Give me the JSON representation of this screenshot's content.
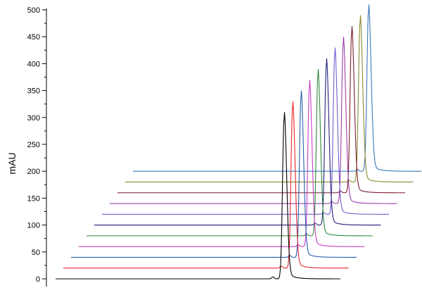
{
  "chart_data": {
    "type": "line",
    "title": "",
    "xlabel": "",
    "ylabel": "mAU",
    "ylim": [
      0,
      500
    ],
    "yticks": [
      0,
      50,
      100,
      150,
      200,
      250,
      300,
      350,
      400,
      450,
      500
    ],
    "ytick_labels": [
      "0",
      "50",
      "100",
      "150",
      "200",
      "250",
      "300",
      "350",
      "400",
      "450",
      "500"
    ],
    "grid": false,
    "legend": "none",
    "traces": [
      {
        "color": "#000000",
        "baseline_mAU": 0,
        "peak_mAU": 298
      },
      {
        "color": "#e8262a",
        "baseline_mAU": 20,
        "peak_mAU": 318
      },
      {
        "color": "#2a5fb0",
        "baseline_mAU": 40,
        "peak_mAU": 338
      },
      {
        "color": "#c23fc4",
        "baseline_mAU": 60,
        "peak_mAU": 358
      },
      {
        "color": "#2e8b3a",
        "baseline_mAU": 80,
        "peak_mAU": 378
      },
      {
        "color": "#1f1f7a",
        "baseline_mAU": 100,
        "peak_mAU": 398
      },
      {
        "color": "#6f5fcf",
        "baseline_mAU": 120,
        "peak_mAU": 418
      },
      {
        "color": "#9a3fa8",
        "baseline_mAU": 140,
        "peak_mAU": 438
      },
      {
        "color": "#7a1c2a",
        "baseline_mAU": 160,
        "peak_mAU": 458
      },
      {
        "color": "#8a8a32",
        "baseline_mAU": 180,
        "peak_mAU": 478
      },
      {
        "color": "#3a78b8",
        "baseline_mAU": 200,
        "peak_mAU": 498
      }
    ]
  }
}
